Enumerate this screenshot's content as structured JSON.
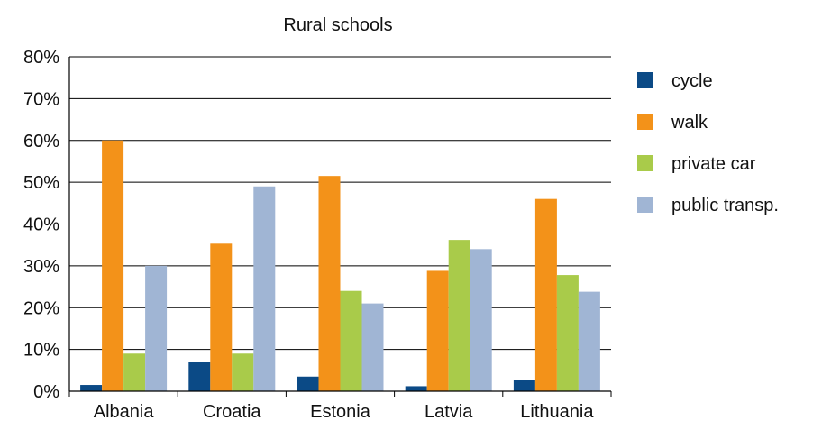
{
  "chart_data": {
    "type": "bar",
    "title": "Rural schools",
    "xlabel": "",
    "ylabel": "",
    "ylim": [
      0,
      80
    ],
    "yticks": [
      "0%",
      "10%",
      "20%",
      "30%",
      "40%",
      "50%",
      "60%",
      "70%",
      "80%"
    ],
    "grid": "horizontal",
    "legend_position": "right",
    "categories": [
      "Albania",
      "Croatia",
      "Estonia",
      "Latvia",
      "Lithuania"
    ],
    "series": [
      {
        "name": "cycle",
        "color": "#0b4a86",
        "values": [
          1.5,
          7,
          3.5,
          1.2,
          2.7
        ]
      },
      {
        "name": "walk",
        "color": "#f39219",
        "values": [
          60,
          35.3,
          51.5,
          28.8,
          46
        ]
      },
      {
        "name": "private car",
        "color": "#a9cb4a",
        "values": [
          9,
          9,
          24,
          36.2,
          27.8
        ]
      },
      {
        "name": "public transp.",
        "color": "#a0b5d4",
        "values": [
          30,
          49,
          21,
          34,
          23.8
        ]
      }
    ]
  }
}
